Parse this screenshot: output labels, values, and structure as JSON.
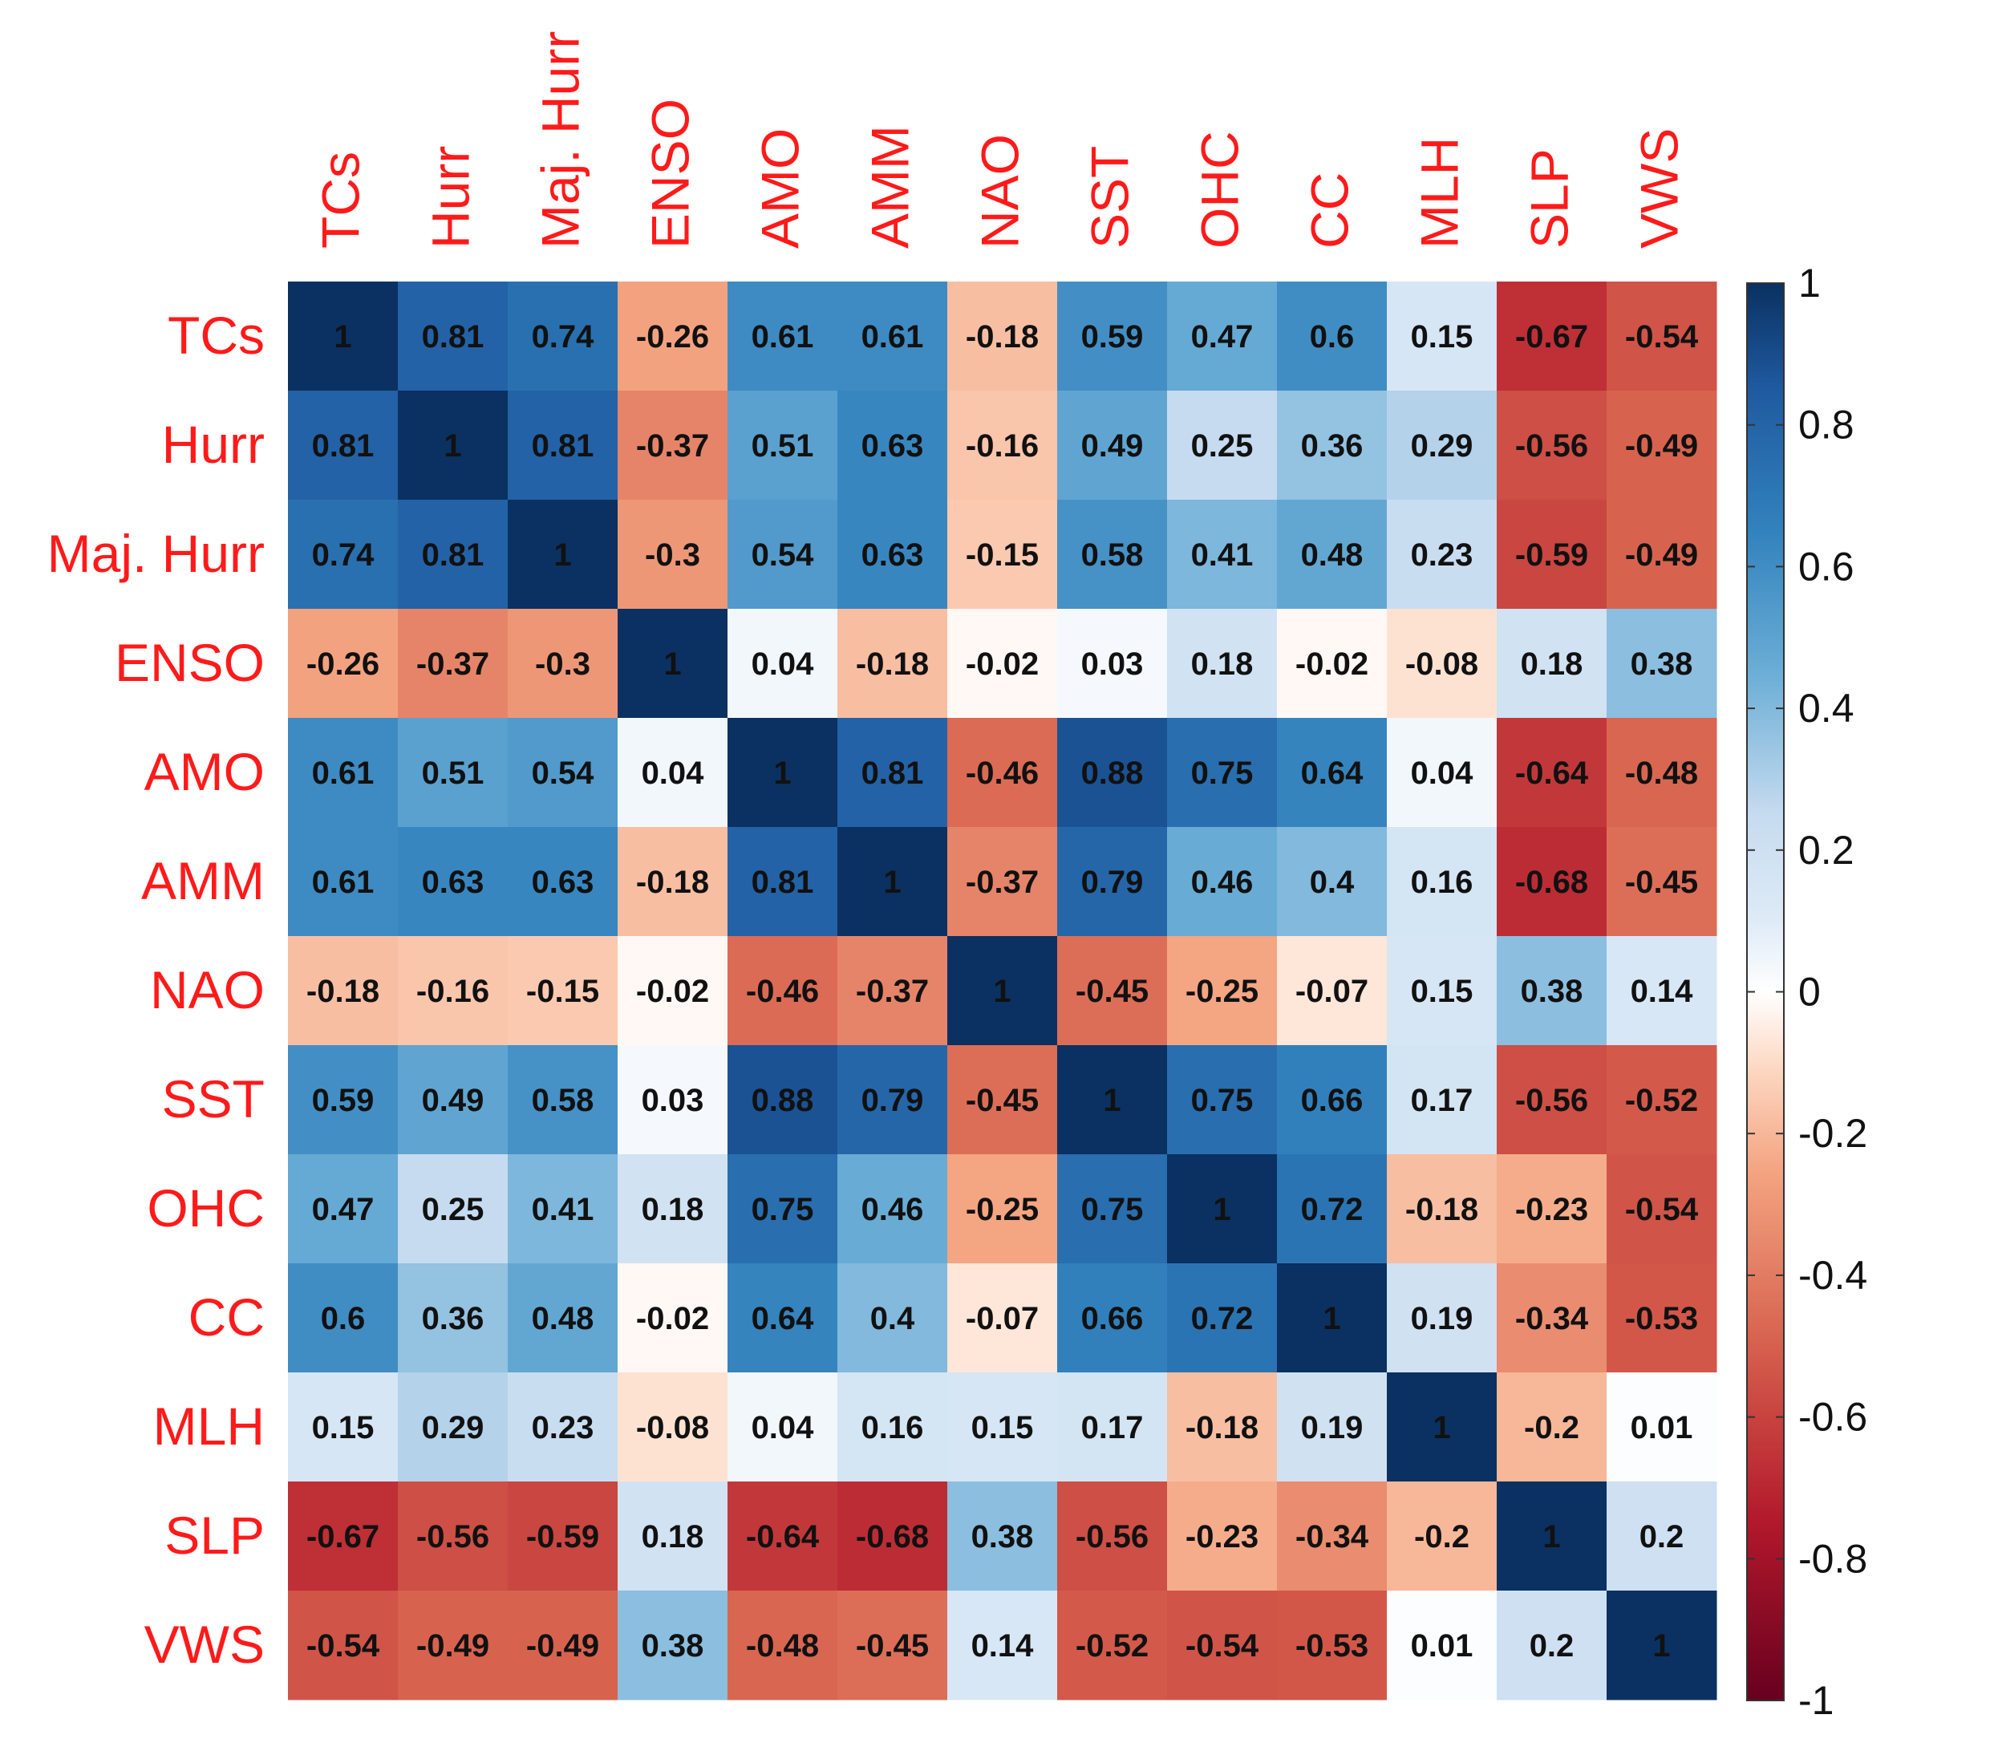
{
  "chart_data": {
    "type": "heatmap",
    "title": "",
    "variables": [
      "TCs",
      "Hurr",
      "Maj. Hurr",
      "ENSO",
      "AMO",
      "AMM",
      "NAO",
      "SST",
      "OHC",
      "CC",
      "MLH",
      "SLP",
      "VWS"
    ],
    "matrix": [
      [
        1,
        0.81,
        0.74,
        -0.26,
        0.61,
        0.61,
        -0.18,
        0.59,
        0.47,
        0.6,
        0.15,
        -0.67,
        -0.54
      ],
      [
        0.81,
        1,
        0.81,
        -0.37,
        0.51,
        0.63,
        -0.16,
        0.49,
        0.25,
        0.36,
        0.29,
        -0.56,
        -0.49
      ],
      [
        0.74,
        0.81,
        1,
        -0.3,
        0.54,
        0.63,
        -0.15,
        0.58,
        0.41,
        0.48,
        0.23,
        -0.59,
        -0.49
      ],
      [
        -0.26,
        -0.37,
        -0.3,
        1,
        0.04,
        -0.18,
        -0.02,
        0.03,
        0.18,
        -0.02,
        -0.08,
        0.18,
        0.38
      ],
      [
        0.61,
        0.51,
        0.54,
        0.04,
        1,
        0.81,
        -0.46,
        0.88,
        0.75,
        0.64,
        0.04,
        -0.64,
        -0.48
      ],
      [
        0.61,
        0.63,
        0.63,
        -0.18,
        0.81,
        1,
        -0.37,
        0.79,
        0.46,
        0.4,
        0.16,
        -0.68,
        -0.45
      ],
      [
        -0.18,
        -0.16,
        -0.15,
        -0.02,
        -0.46,
        -0.37,
        1,
        -0.45,
        -0.25,
        -0.07,
        0.15,
        0.38,
        0.14
      ],
      [
        0.59,
        0.49,
        0.58,
        0.03,
        0.88,
        0.79,
        -0.45,
        1,
        0.75,
        0.66,
        0.17,
        -0.56,
        -0.52
      ],
      [
        0.47,
        0.25,
        0.41,
        0.18,
        0.75,
        0.46,
        -0.25,
        0.75,
        1,
        0.72,
        -0.18,
        -0.23,
        -0.54
      ],
      [
        0.6,
        0.36,
        0.48,
        -0.02,
        0.64,
        0.4,
        -0.07,
        0.66,
        0.72,
        1,
        0.19,
        -0.34,
        -0.53
      ],
      [
        0.15,
        0.29,
        0.23,
        -0.08,
        0.04,
        0.16,
        0.15,
        0.17,
        -0.18,
        0.19,
        1,
        -0.2,
        0.01
      ],
      [
        -0.67,
        -0.56,
        -0.59,
        0.18,
        -0.64,
        -0.68,
        0.38,
        -0.56,
        -0.23,
        -0.34,
        -0.2,
        1,
        0.2
      ],
      [
        -0.54,
        -0.49,
        -0.49,
        0.38,
        -0.48,
        -0.45,
        0.14,
        -0.52,
        -0.54,
        -0.53,
        0.01,
        0.2,
        1
      ]
    ],
    "color_scale": {
      "min": -1,
      "max": 1,
      "ticks": [
        "1",
        "0.8",
        "0.6",
        "0.4",
        "0.2",
        "0",
        "-0.2",
        "-0.4",
        "-0.6",
        "-0.8",
        "-1"
      ],
      "tick_values": [
        1,
        0.8,
        0.6,
        0.4,
        0.2,
        0,
        -0.2,
        -0.4,
        -0.6,
        -0.8,
        -1
      ],
      "stops": [
        {
          "value": -1,
          "color": "#67001f"
        },
        {
          "value": -0.75,
          "color": "#b2182b"
        },
        {
          "value": -0.5,
          "color": "#d6604d"
        },
        {
          "value": -0.25,
          "color": "#f4a582"
        },
        {
          "value": -0.1,
          "color": "#fddbc7"
        },
        {
          "value": 0,
          "color": "#ffffff"
        },
        {
          "value": 0.1,
          "color": "#deebf7"
        },
        {
          "value": 0.25,
          "color": "#c6dbef"
        },
        {
          "value": 0.45,
          "color": "#6baed6"
        },
        {
          "value": 0.65,
          "color": "#3282bd"
        },
        {
          "value": 0.85,
          "color": "#1f5aa0"
        },
        {
          "value": 1,
          "color": "#0a3161"
        }
      ],
      "legend_position": "right"
    },
    "label_color": "#ff1a1a"
  }
}
